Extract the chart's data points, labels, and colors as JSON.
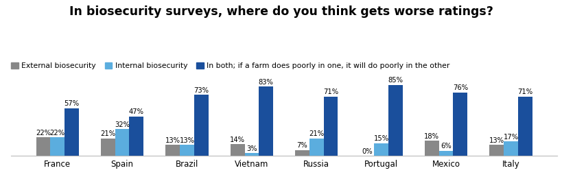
{
  "title": "In biosecurity surveys, where do you think gets worse ratings?",
  "categories": [
    "France",
    "Spain",
    "Brazil",
    "Vietnam",
    "Russia",
    "Portugal",
    "Mexico",
    "Italy"
  ],
  "external": [
    22,
    21,
    13,
    14,
    7,
    0,
    18,
    13
  ],
  "internal": [
    22,
    32,
    13,
    3,
    21,
    15,
    6,
    17
  ],
  "both": [
    57,
    47,
    73,
    83,
    71,
    85,
    76,
    71
  ],
  "color_external": "#888888",
  "color_internal": "#5badde",
  "color_both": "#1a4f9c",
  "legend_labels": [
    "External biosecurity",
    "Internal biosecurity",
    "In both; if a farm does poorly in one, it will do poorly in the other"
  ],
  "bar_width": 0.22,
  "ylim": [
    0,
    100
  ],
  "background_color": "#ffffff",
  "title_fontsize": 12.5,
  "label_fontsize": 7.2,
  "legend_fontsize": 7.8,
  "tick_fontsize": 8.5
}
